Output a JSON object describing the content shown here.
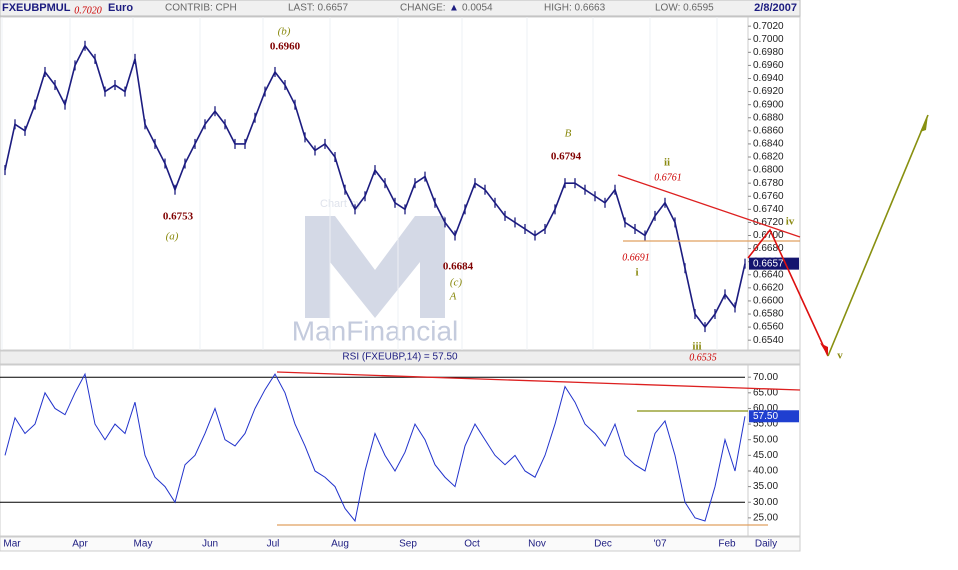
{
  "header": {
    "symbol": "FXEUBPMUL",
    "name": "Euro",
    "contrib": "CONTRIB: CPH",
    "last": "LAST: 0.6657",
    "change_label": "CHANGE:",
    "change_arrow": "▲",
    "change_value": "0.0054",
    "high": "HIGH: 0.6663",
    "low": "LOW: 0.6595",
    "date": "2/8/2007",
    "watermark": "ManFinancial",
    "watermark_small": "Chart by"
  },
  "x_axis_labels": [
    "Mar",
    "Apr",
    "May",
    "Jun",
    "Jul",
    "Aug",
    "Sep",
    "Oct",
    "Nov",
    "Dec",
    "'07",
    "Feb",
    "Daily"
  ],
  "chart_data": [
    {
      "type": "line",
      "color": "#1c1c80",
      "values": [
        0.68,
        0.687,
        0.686,
        0.69,
        0.695,
        0.693,
        0.69,
        0.696,
        0.699,
        0.697,
        0.692,
        0.693,
        0.692,
        0.697,
        0.687,
        0.684,
        0.681,
        0.677,
        0.681,
        0.684,
        0.687,
        0.689,
        0.687,
        0.684,
        0.684,
        0.688,
        0.692,
        0.695,
        0.693,
        0.69,
        0.685,
        0.683,
        0.684,
        0.682,
        0.677,
        0.674,
        0.676,
        0.68,
        0.678,
        0.675,
        0.674,
        0.678,
        0.679,
        0.675,
        0.672,
        0.67,
        0.674,
        0.678,
        0.677,
        0.675,
        0.673,
        0.672,
        0.671,
        0.67,
        0.671,
        0.674,
        0.678,
        0.678,
        0.677,
        0.676,
        0.675,
        0.677,
        0.672,
        0.671,
        0.67,
        0.673,
        0.675,
        0.672,
        0.665,
        0.658,
        0.656,
        0.658,
        0.661,
        0.659,
        0.6657
      ],
      "last_value_label": "0.6657",
      "ylim": [
        0.6525,
        0.7034
      ],
      "yticks": [
        {
          "value": 0.654,
          "label": "0.6540"
        },
        {
          "value": 0.656,
          "label": "0.6560"
        },
        {
          "value": 0.658,
          "label": "0.6580"
        },
        {
          "value": 0.66,
          "label": "0.6600"
        },
        {
          "value": 0.662,
          "label": "0.6620"
        },
        {
          "value": 0.664,
          "label": "0.6640"
        },
        {
          "value": 0.666,
          "label": "0.6660"
        },
        {
          "value": 0.668,
          "label": "0.6680"
        },
        {
          "value": 0.67,
          "label": "0.6700"
        },
        {
          "value": 0.672,
          "label": "0.6720"
        },
        {
          "value": 0.674,
          "label": "0.6740"
        },
        {
          "value": 0.676,
          "label": "0.6760"
        },
        {
          "value": 0.678,
          "label": "0.6780"
        },
        {
          "value": 0.68,
          "label": "0.6800"
        },
        {
          "value": 0.682,
          "label": "0.6820"
        },
        {
          "value": 0.684,
          "label": "0.6840"
        },
        {
          "value": 0.686,
          "label": "0.6860"
        },
        {
          "value": 0.688,
          "label": "0.6880"
        },
        {
          "value": 0.69,
          "label": "0.6900"
        },
        {
          "value": 0.692,
          "label": "0.6920"
        },
        {
          "value": 0.694,
          "label": "0.6940"
        },
        {
          "value": 0.696,
          "label": "0.6960"
        },
        {
          "value": 0.698,
          "label": "0.6980"
        },
        {
          "value": 0.7,
          "label": "0.7000"
        },
        {
          "value": 0.702,
          "label": "0.7020"
        }
      ],
      "annotations": [
        "0.7020",
        "(b)",
        "0.6960",
        "0.6753",
        "(a)",
        "B",
        "0.6794",
        "ii",
        "0.6761",
        "iv",
        "0.6691",
        "i",
        "0.6684",
        "(c)",
        "A",
        "iii",
        "0.6535",
        "v"
      ]
    },
    {
      "type": "line",
      "title": "RSI (FXEUBP,14) = 57.50",
      "color": "#2233cc",
      "values": [
        45,
        57,
        52,
        55,
        65,
        60,
        58,
        65,
        71,
        55,
        50,
        55,
        52,
        62,
        45,
        38,
        35,
        30,
        42,
        45,
        52,
        60,
        50,
        48,
        52,
        60,
        66,
        71,
        65,
        55,
        48,
        40,
        38,
        35,
        28,
        24,
        40,
        52,
        45,
        40,
        46,
        55,
        50,
        42,
        38,
        35,
        48,
        55,
        50,
        45,
        42,
        45,
        40,
        38,
        45,
        55,
        67,
        62,
        55,
        52,
        48,
        55,
        45,
        42,
        40,
        52,
        56,
        45,
        30,
        25,
        24,
        35,
        50,
        40,
        57.5
      ],
      "last_value_label": "57.50",
      "ylim": [
        19.2,
        73.9
      ],
      "yticks": [
        {
          "value": 25,
          "label": "25.00"
        },
        {
          "value": 30,
          "label": "30.00"
        },
        {
          "value": 35,
          "label": "35.00"
        },
        {
          "value": 40,
          "label": "40.00"
        },
        {
          "value": 45,
          "label": "45.00"
        },
        {
          "value": 50,
          "label": "50.00"
        },
        {
          "value": 55,
          "label": "55.00"
        },
        {
          "value": 60,
          "label": "60.00"
        },
        {
          "value": 65,
          "label": "65.00"
        },
        {
          "value": 70,
          "label": "70.00"
        }
      ]
    }
  ]
}
